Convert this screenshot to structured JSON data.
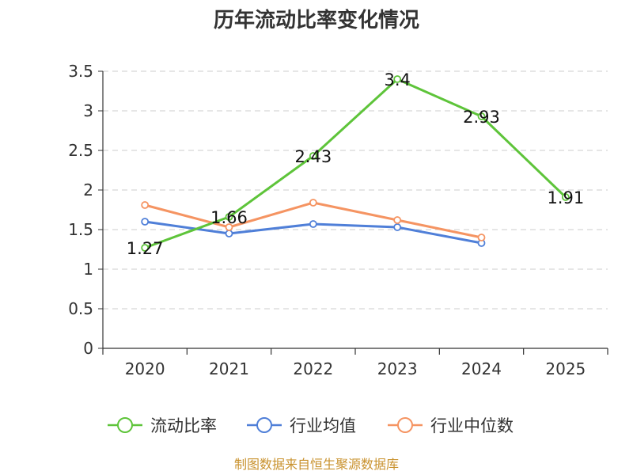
{
  "chart_data": {
    "type": "line",
    "title": "历年流动比率变化情况",
    "categories": [
      "2020",
      "2021",
      "2022",
      "2023",
      "2024",
      "2025"
    ],
    "y_ticks": [
      "0",
      "0.5",
      "1",
      "1.5",
      "2",
      "2.5",
      "3",
      "3.5"
    ],
    "ylim": [
      0,
      3.5
    ],
    "grid": true,
    "legend_position": "bottom",
    "series": [
      {
        "name": "流动比率",
        "color": "#5ec43a",
        "values": [
          1.27,
          1.66,
          2.43,
          3.4,
          2.93,
          1.91
        ],
        "labels": [
          "1.27",
          "1.66",
          "2.43",
          "3.4",
          "2.93",
          "1.91"
        ]
      },
      {
        "name": "行业均值",
        "color": "#4f7fd8",
        "values": [
          1.6,
          1.45,
          1.57,
          1.53,
          1.33,
          null
        ]
      },
      {
        "name": "行业中位数",
        "color": "#f59462",
        "values": [
          1.81,
          1.53,
          1.84,
          1.62,
          1.4,
          null
        ]
      }
    ],
    "source": "制图数据来自恒生聚源数据库"
  }
}
